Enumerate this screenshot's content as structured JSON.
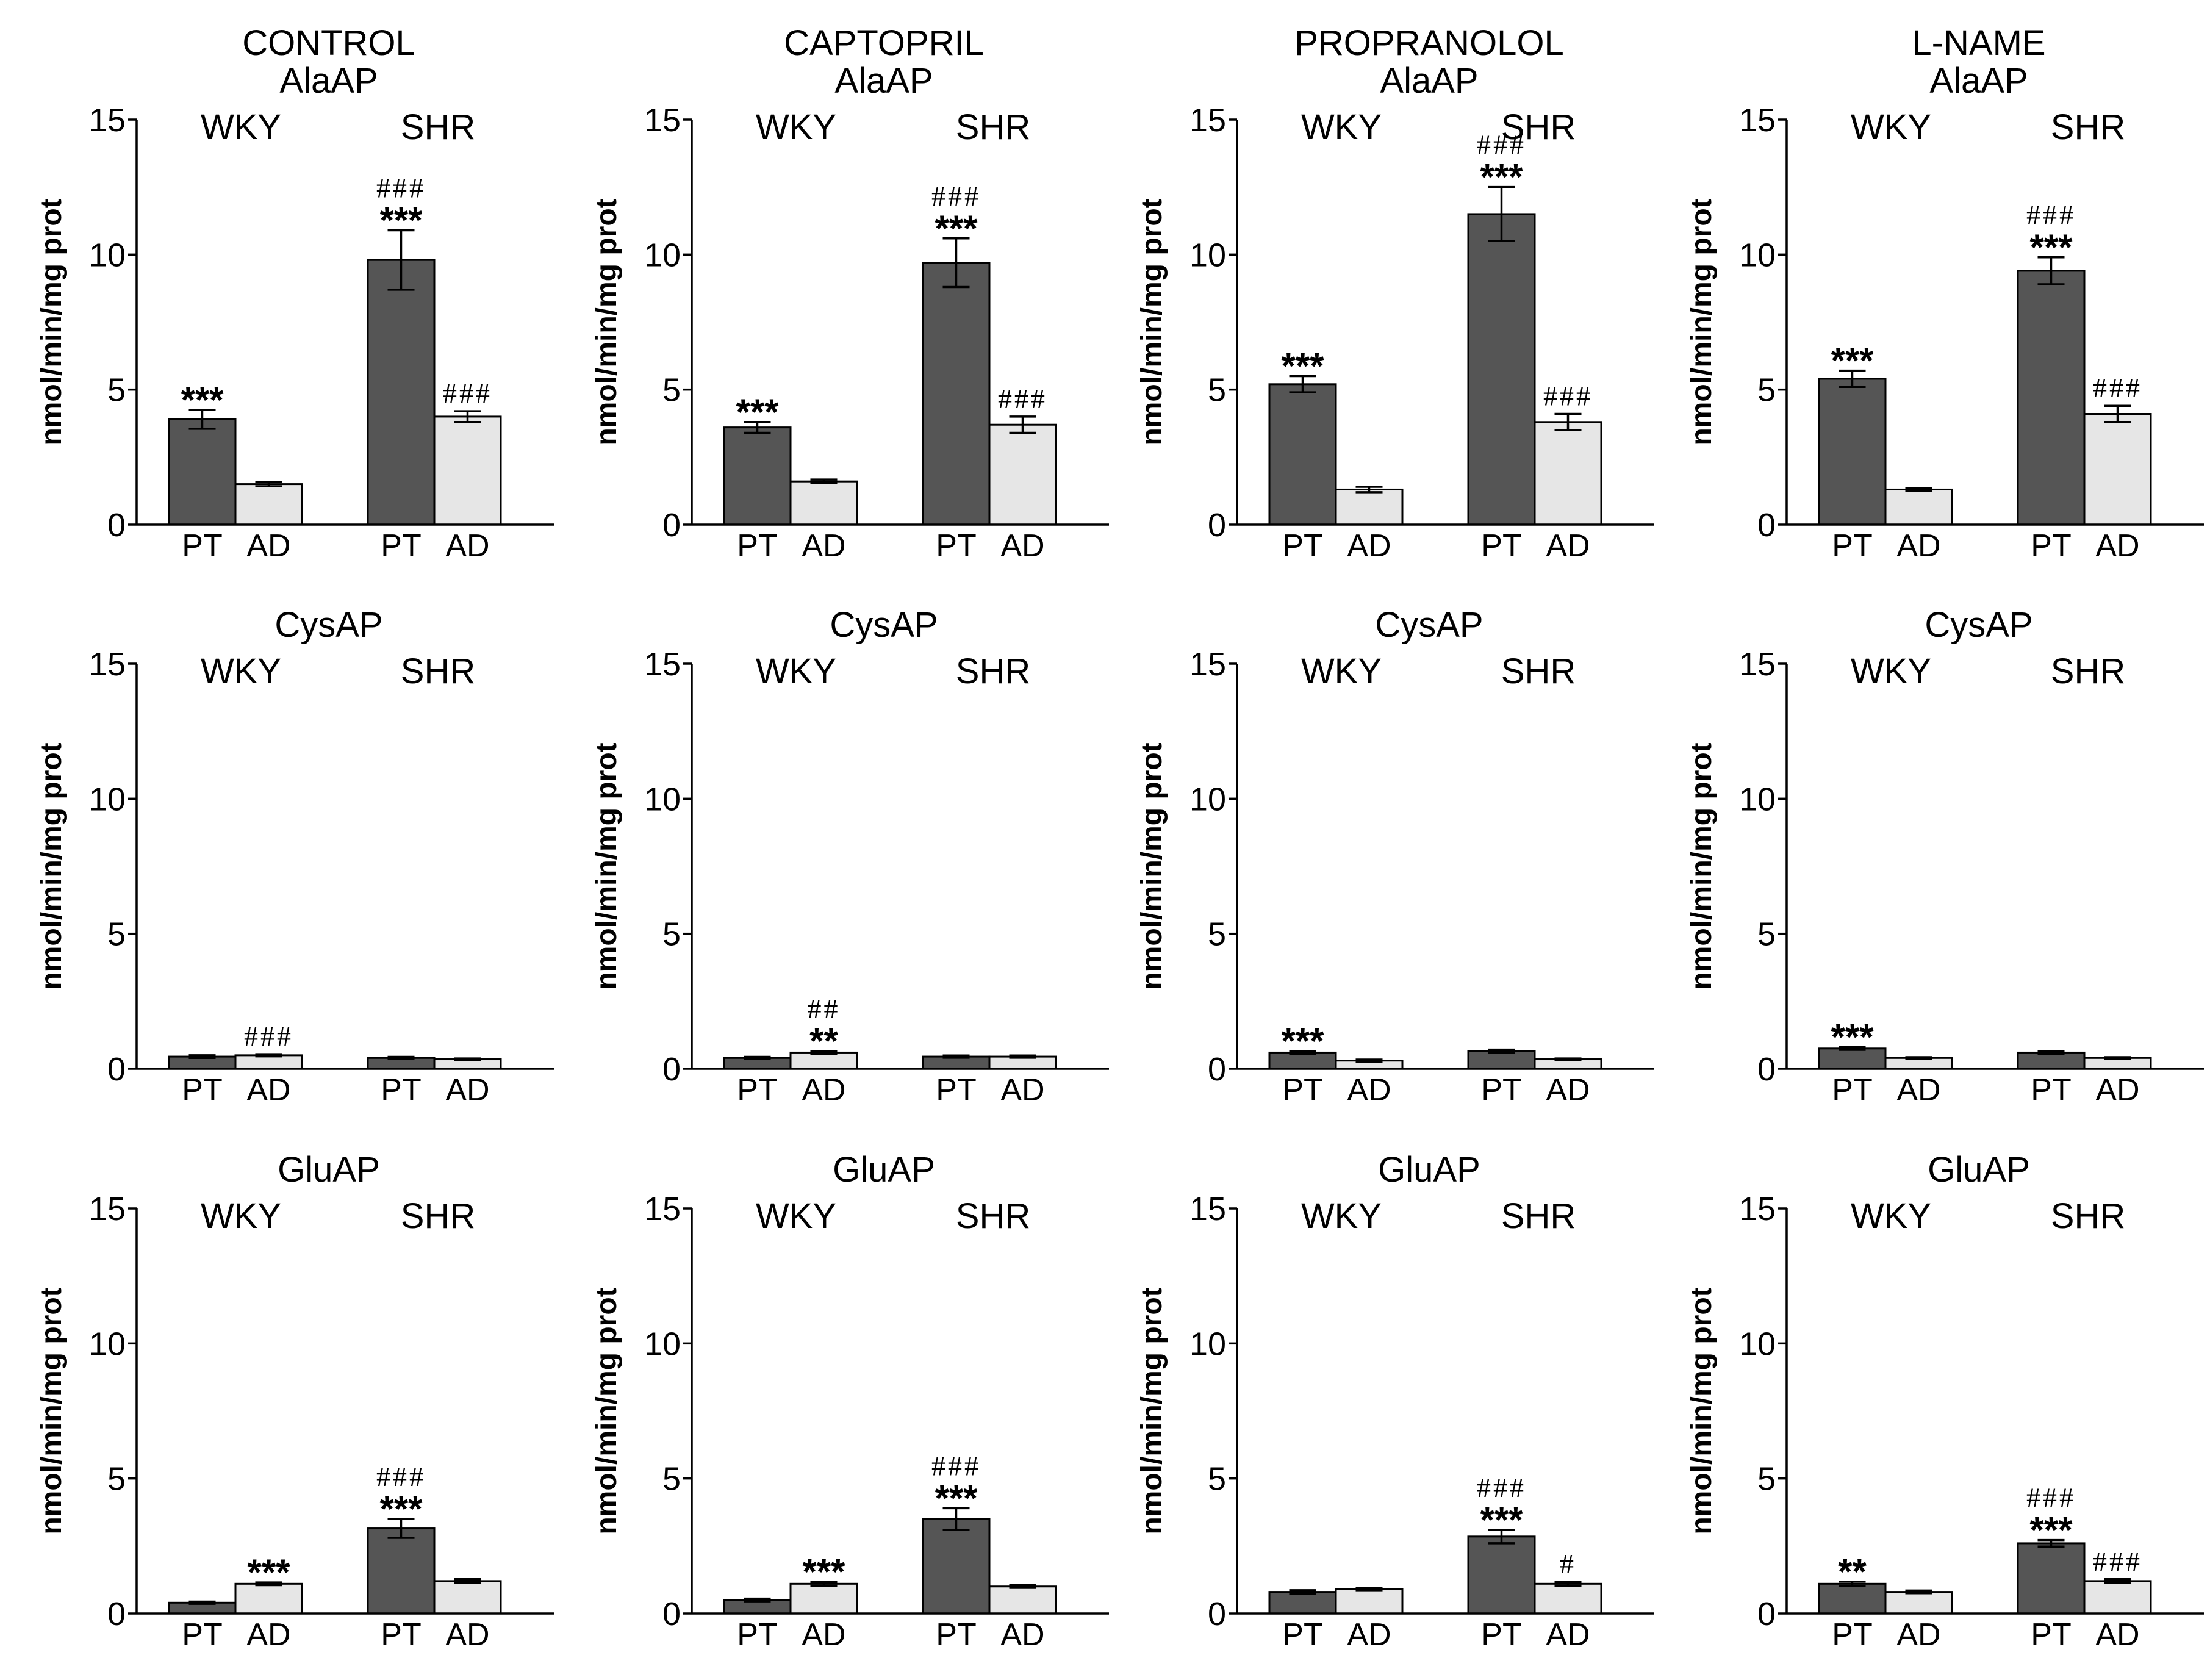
{
  "colors": {
    "bars": {
      "PT": "#555555",
      "AD": "#e6e6e6"
    }
  },
  "chart_data": [
    {
      "type": "bar",
      "column_title": "CONTROL",
      "title": "AlaAP",
      "ylabel": "nmol/min/mg prot",
      "ylim": [
        0,
        15
      ],
      "yticks": [
        0,
        5,
        10,
        15
      ],
      "grid": false,
      "groups": [
        {
          "name": "WKY",
          "bars": [
            {
              "category": "PT",
              "value": 3.9,
              "error": 0.35,
              "annotations": [
                "***"
              ]
            },
            {
              "category": "AD",
              "value": 1.5,
              "error": 0.08,
              "annotations": []
            }
          ]
        },
        {
          "name": "SHR",
          "bars": [
            {
              "category": "PT",
              "value": 9.8,
              "error": 1.1,
              "annotations": [
                "###",
                "***"
              ]
            },
            {
              "category": "AD",
              "value": 4.0,
              "error": 0.2,
              "annotations": [
                "###"
              ]
            }
          ]
        }
      ]
    },
    {
      "type": "bar",
      "column_title": "CAPTOPRIL",
      "title": "AlaAP",
      "ylabel": "nmol/min/mg prot",
      "ylim": [
        0,
        15
      ],
      "yticks": [
        0,
        5,
        10,
        15
      ],
      "grid": false,
      "groups": [
        {
          "name": "WKY",
          "bars": [
            {
              "category": "PT",
              "value": 3.6,
              "error": 0.2,
              "annotations": [
                "***"
              ]
            },
            {
              "category": "AD",
              "value": 1.6,
              "error": 0.07,
              "annotations": []
            }
          ]
        },
        {
          "name": "SHR",
          "bars": [
            {
              "category": "PT",
              "value": 9.7,
              "error": 0.9,
              "annotations": [
                "###",
                "***"
              ]
            },
            {
              "category": "AD",
              "value": 3.7,
              "error": 0.3,
              "annotations": [
                "###"
              ]
            }
          ]
        }
      ]
    },
    {
      "type": "bar",
      "column_title": "PROPRANOLOL",
      "title": "AlaAP",
      "ylabel": "nmol/min/mg prot",
      "ylim": [
        0,
        15
      ],
      "yticks": [
        0,
        5,
        10,
        15
      ],
      "grid": false,
      "groups": [
        {
          "name": "WKY",
          "bars": [
            {
              "category": "PT",
              "value": 5.2,
              "error": 0.3,
              "annotations": [
                "***"
              ]
            },
            {
              "category": "AD",
              "value": 1.3,
              "error": 0.1,
              "annotations": []
            }
          ]
        },
        {
          "name": "SHR",
          "bars": [
            {
              "category": "PT",
              "value": 11.5,
              "error": 1.0,
              "annotations": [
                "###",
                "***"
              ]
            },
            {
              "category": "AD",
              "value": 3.8,
              "error": 0.3,
              "annotations": [
                "###"
              ]
            }
          ]
        }
      ]
    },
    {
      "type": "bar",
      "column_title": "L-NAME",
      "title": "AlaAP",
      "ylabel": "nmol/min/mg prot",
      "ylim": [
        0,
        15
      ],
      "yticks": [
        0,
        5,
        10,
        15
      ],
      "grid": false,
      "groups": [
        {
          "name": "WKY",
          "bars": [
            {
              "category": "PT",
              "value": 5.4,
              "error": 0.3,
              "annotations": [
                "***"
              ]
            },
            {
              "category": "AD",
              "value": 1.3,
              "error": 0.05,
              "annotations": []
            }
          ]
        },
        {
          "name": "SHR",
          "bars": [
            {
              "category": "PT",
              "value": 9.4,
              "error": 0.5,
              "annotations": [
                "###",
                "***"
              ]
            },
            {
              "category": "AD",
              "value": 4.1,
              "error": 0.3,
              "annotations": [
                "###"
              ]
            }
          ]
        }
      ]
    },
    {
      "type": "bar",
      "title": "CysAP",
      "ylabel": "nmol/min/mg prot",
      "ylim": [
        0,
        15
      ],
      "yticks": [
        0,
        5,
        10,
        15
      ],
      "grid": false,
      "groups": [
        {
          "name": "WKY",
          "bars": [
            {
              "category": "PT",
              "value": 0.45,
              "error": 0.05,
              "annotations": []
            },
            {
              "category": "AD",
              "value": 0.5,
              "error": 0.04,
              "annotations": [
                "###"
              ]
            }
          ]
        },
        {
          "name": "SHR",
          "bars": [
            {
              "category": "PT",
              "value": 0.4,
              "error": 0.04,
              "annotations": []
            },
            {
              "category": "AD",
              "value": 0.35,
              "error": 0.03,
              "annotations": []
            }
          ]
        }
      ]
    },
    {
      "type": "bar",
      "title": "CysAP",
      "ylabel": "nmol/min/mg prot",
      "ylim": [
        0,
        15
      ],
      "yticks": [
        0,
        5,
        10,
        15
      ],
      "grid": false,
      "groups": [
        {
          "name": "WKY",
          "bars": [
            {
              "category": "PT",
              "value": 0.4,
              "error": 0.04,
              "annotations": []
            },
            {
              "category": "AD",
              "value": 0.6,
              "error": 0.05,
              "annotations": [
                "##",
                "**"
              ]
            }
          ]
        },
        {
          "name": "SHR",
          "bars": [
            {
              "category": "PT",
              "value": 0.45,
              "error": 0.04,
              "annotations": []
            },
            {
              "category": "AD",
              "value": 0.45,
              "error": 0.04,
              "annotations": []
            }
          ]
        }
      ]
    },
    {
      "type": "bar",
      "title": "CysAP",
      "ylabel": "nmol/min/mg prot",
      "ylim": [
        0,
        15
      ],
      "yticks": [
        0,
        5,
        10,
        15
      ],
      "grid": false,
      "groups": [
        {
          "name": "WKY",
          "bars": [
            {
              "category": "PT",
              "value": 0.6,
              "error": 0.05,
              "annotations": [
                "***"
              ]
            },
            {
              "category": "AD",
              "value": 0.3,
              "error": 0.04,
              "annotations": []
            }
          ]
        },
        {
          "name": "SHR",
          "bars": [
            {
              "category": "PT",
              "value": 0.65,
              "error": 0.06,
              "annotations": []
            },
            {
              "category": "AD",
              "value": 0.35,
              "error": 0.03,
              "annotations": []
            }
          ]
        }
      ]
    },
    {
      "type": "bar",
      "title": "CysAP",
      "ylabel": "nmol/min/mg prot",
      "ylim": [
        0,
        15
      ],
      "yticks": [
        0,
        5,
        10,
        15
      ],
      "grid": false,
      "groups": [
        {
          "name": "WKY",
          "bars": [
            {
              "category": "PT",
              "value": 0.75,
              "error": 0.05,
              "annotations": [
                "***"
              ]
            },
            {
              "category": "AD",
              "value": 0.4,
              "error": 0.03,
              "annotations": []
            }
          ]
        },
        {
          "name": "SHR",
          "bars": [
            {
              "category": "PT",
              "value": 0.6,
              "error": 0.05,
              "annotations": []
            },
            {
              "category": "AD",
              "value": 0.4,
              "error": 0.03,
              "annotations": []
            }
          ]
        }
      ]
    },
    {
      "type": "bar",
      "title": "GluAP",
      "ylabel": "nmol/min/mg prot",
      "ylim": [
        0,
        15
      ],
      "yticks": [
        0,
        5,
        10,
        15
      ],
      "grid": false,
      "groups": [
        {
          "name": "WKY",
          "bars": [
            {
              "category": "PT",
              "value": 0.4,
              "error": 0.04,
              "annotations": []
            },
            {
              "category": "AD",
              "value": 1.1,
              "error": 0.05,
              "annotations": [
                "***"
              ]
            }
          ]
        },
        {
          "name": "SHR",
          "bars": [
            {
              "category": "PT",
              "value": 3.15,
              "error": 0.35,
              "annotations": [
                "###",
                "***"
              ]
            },
            {
              "category": "AD",
              "value": 1.2,
              "error": 0.07,
              "annotations": []
            }
          ]
        }
      ]
    },
    {
      "type": "bar",
      "title": "GluAP",
      "ylabel": "nmol/min/mg prot",
      "ylim": [
        0,
        15
      ],
      "yticks": [
        0,
        5,
        10,
        15
      ],
      "grid": false,
      "groups": [
        {
          "name": "WKY",
          "bars": [
            {
              "category": "PT",
              "value": 0.5,
              "error": 0.05,
              "annotations": []
            },
            {
              "category": "AD",
              "value": 1.1,
              "error": 0.07,
              "annotations": [
                "***"
              ]
            }
          ]
        },
        {
          "name": "SHR",
          "bars": [
            {
              "category": "PT",
              "value": 3.5,
              "error": 0.4,
              "annotations": [
                "###",
                "***"
              ]
            },
            {
              "category": "AD",
              "value": 1.0,
              "error": 0.05,
              "annotations": []
            }
          ]
        }
      ]
    },
    {
      "type": "bar",
      "title": "GluAP",
      "ylabel": "nmol/min/mg prot",
      "ylim": [
        0,
        15
      ],
      "yticks": [
        0,
        5,
        10,
        15
      ],
      "grid": false,
      "groups": [
        {
          "name": "WKY",
          "bars": [
            {
              "category": "PT",
              "value": 0.8,
              "error": 0.06,
              "annotations": []
            },
            {
              "category": "AD",
              "value": 0.9,
              "error": 0.04,
              "annotations": []
            }
          ]
        },
        {
          "name": "SHR",
          "bars": [
            {
              "category": "PT",
              "value": 2.85,
              "error": 0.25,
              "annotations": [
                "###",
                "***"
              ]
            },
            {
              "category": "AD",
              "value": 1.1,
              "error": 0.07,
              "annotations": [
                "#"
              ]
            }
          ]
        }
      ]
    },
    {
      "type": "bar",
      "title": "GluAP",
      "ylabel": "nmol/min/mg prot",
      "ylim": [
        0,
        15
      ],
      "yticks": [
        0,
        5,
        10,
        15
      ],
      "grid": false,
      "groups": [
        {
          "name": "WKY",
          "bars": [
            {
              "category": "PT",
              "value": 1.1,
              "error": 0.08,
              "annotations": [
                "**"
              ]
            },
            {
              "category": "AD",
              "value": 0.8,
              "error": 0.05,
              "annotations": []
            }
          ]
        },
        {
          "name": "SHR",
          "bars": [
            {
              "category": "PT",
              "value": 2.6,
              "error": 0.12,
              "annotations": [
                "###",
                "***"
              ]
            },
            {
              "category": "AD",
              "value": 1.2,
              "error": 0.07,
              "annotations": [
                "###"
              ]
            }
          ]
        }
      ]
    }
  ]
}
